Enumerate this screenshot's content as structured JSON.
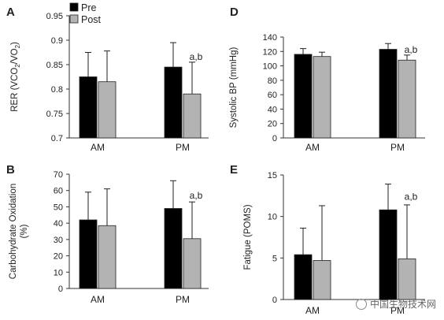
{
  "legend": [
    {
      "label": "Pre",
      "color": "#000000"
    },
    {
      "label": "Post",
      "color": "#b3b3b3"
    }
  ],
  "watermark": "中国生物技术网",
  "chart_data": [
    {
      "id": "A",
      "letter": "A",
      "type": "bar",
      "ylabel_parts": [
        "RER (VCO",
        "2",
        "/VO",
        "2",
        ")"
      ],
      "categories": [
        "AM",
        "PM"
      ],
      "ylim": [
        0.7,
        0.95
      ],
      "yticks": [
        0.7,
        0.75,
        0.8,
        0.85,
        0.9,
        0.95
      ],
      "ytick_labels": [
        "0.7",
        "0.75",
        "0.8",
        "0.85",
        "0.9",
        "0.95"
      ],
      "series": [
        {
          "name": "Pre",
          "values": [
            0.825,
            0.845
          ],
          "err_upper": [
            0.875,
            0.895
          ]
        },
        {
          "name": "Post",
          "values": [
            0.815,
            0.79
          ],
          "err_upper": [
            0.878,
            0.855
          ]
        }
      ],
      "annotation": {
        "text": "a,b",
        "category": "PM",
        "value": 0.86
      }
    },
    {
      "id": "B",
      "letter": "B",
      "type": "bar",
      "ylabel_lines": [
        "Carbohydrate Oxidation",
        "(%)"
      ],
      "categories": [
        "AM",
        "PM"
      ],
      "ylim": [
        0,
        70
      ],
      "yticks": [
        0,
        10,
        20,
        30,
        40,
        50,
        60,
        70
      ],
      "ytick_labels": [
        "0",
        "10",
        "20",
        "30",
        "40",
        "50",
        "60",
        "70"
      ],
      "series": [
        {
          "name": "Pre",
          "values": [
            42,
            49
          ],
          "err_upper": [
            59,
            66
          ]
        },
        {
          "name": "Post",
          "values": [
            38.5,
            30.5
          ],
          "err_upper": [
            61,
            53
          ]
        }
      ],
      "annotation": {
        "text": "a,b",
        "category": "PM",
        "value": 55
      }
    },
    {
      "id": "D",
      "letter": "D",
      "type": "bar",
      "ylabel": "Systolic BP (mmHg)",
      "categories": [
        "AM",
        "PM"
      ],
      "ylim": [
        0,
        140
      ],
      "yticks": [
        0,
        20,
        40,
        60,
        80,
        100,
        120,
        140
      ],
      "ytick_labels": [
        "0",
        "20",
        "40",
        "60",
        "80",
        "100",
        "120",
        "140"
      ],
      "series": [
        {
          "name": "Pre",
          "values": [
            116,
            123
          ],
          "err_upper": [
            124,
            131
          ]
        },
        {
          "name": "Post",
          "values": [
            113,
            108
          ],
          "err_upper": [
            119,
            115
          ]
        }
      ],
      "annotation": {
        "text": "a,b",
        "category": "PM",
        "value": 118
      }
    },
    {
      "id": "E",
      "letter": "E",
      "type": "bar",
      "ylabel": "Fatigue (POMS)",
      "categories": [
        "AM",
        "PM"
      ],
      "ylim": [
        0,
        15
      ],
      "yticks": [
        0,
        5,
        10,
        15
      ],
      "ytick_labels": [
        "0",
        "5",
        "10",
        "15"
      ],
      "series": [
        {
          "name": "Pre",
          "values": [
            5.4,
            10.8
          ],
          "err_upper": [
            8.6,
            13.9
          ]
        },
        {
          "name": "Post",
          "values": [
            4.7,
            4.9
          ],
          "err_upper": [
            11.3,
            11.4
          ]
        }
      ],
      "annotation": {
        "text": "a,b",
        "category": "PM",
        "value": 12
      }
    }
  ]
}
